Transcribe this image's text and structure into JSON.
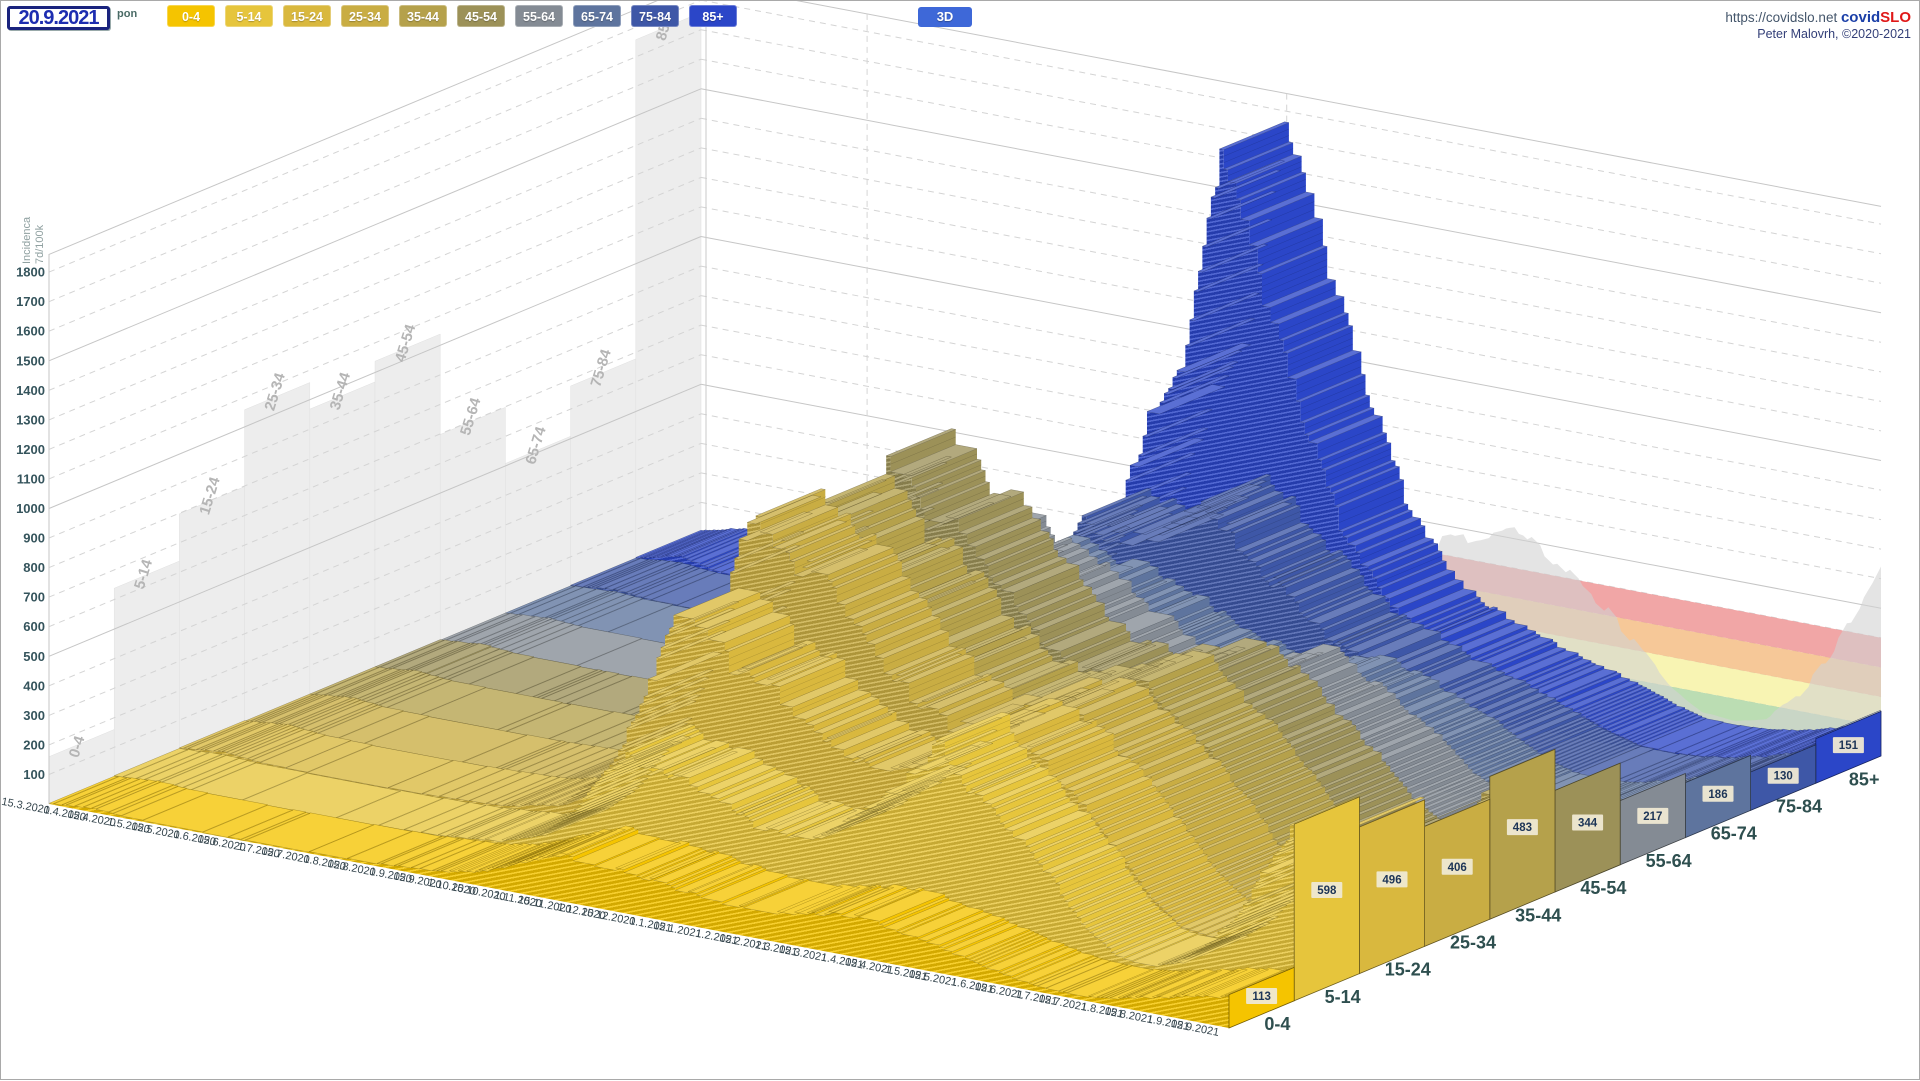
{
  "header": {
    "date": "20.9.2021",
    "day": "pon",
    "mode_button": "3D",
    "url": "https://covidslo.net",
    "brand_covid": "covid",
    "brand_slo": "SLO",
    "credit": "Peter Malovrh, ©2020-2021"
  },
  "axis": {
    "y_title_line1": "7d/100k",
    "y_title_line2": "Incidenca",
    "y_ticks": [
      100,
      200,
      300,
      400,
      500,
      600,
      700,
      800,
      900,
      1000,
      1100,
      1200,
      1300,
      1400,
      1500,
      1600,
      1700,
      1800
    ],
    "x_dates": [
      {
        "d": 0,
        "label": "15.3.2020"
      },
      {
        "d": 17,
        "label": "1.4.2020"
      },
      {
        "d": 31,
        "label": "15.4.2020"
      },
      {
        "d": 47,
        "label": "1.5.2020"
      },
      {
        "d": 61,
        "label": "15.5.2020"
      },
      {
        "d": 78,
        "label": "1.6.2020"
      },
      {
        "d": 92,
        "label": "15.6.2020"
      },
      {
        "d": 108,
        "label": "1.7.2020"
      },
      {
        "d": 122,
        "label": "15.7.2020"
      },
      {
        "d": 139,
        "label": "1.8.2020"
      },
      {
        "d": 153,
        "label": "15.8.2020"
      },
      {
        "d": 170,
        "label": "1.9.2020"
      },
      {
        "d": 184,
        "label": "15.9.2020"
      },
      {
        "d": 200,
        "label": "1.10.2020"
      },
      {
        "d": 214,
        "label": "15.10.2020"
      },
      {
        "d": 231,
        "label": "1.11.2020"
      },
      {
        "d": 245,
        "label": "15.11.2020"
      },
      {
        "d": 261,
        "label": "1.12.2020"
      },
      {
        "d": 275,
        "label": "15.12.2020"
      },
      {
        "d": 292,
        "label": "1.1.2021"
      },
      {
        "d": 306,
        "label": "15.1.2021"
      },
      {
        "d": 323,
        "label": "1.2.2021"
      },
      {
        "d": 337,
        "label": "15.2.2021"
      },
      {
        "d": 351,
        "label": "1.3.2021"
      },
      {
        "d": 365,
        "label": "15.3.2021"
      },
      {
        "d": 382,
        "label": "1.4.2021"
      },
      {
        "d": 396,
        "label": "15.4.2021"
      },
      {
        "d": 412,
        "label": "1.5.2021"
      },
      {
        "d": 426,
        "label": "15.5.2021"
      },
      {
        "d": 443,
        "label": "1.6.2021"
      },
      {
        "d": 457,
        "label": "15.6.2021"
      },
      {
        "d": 473,
        "label": "1.7.2021"
      },
      {
        "d": 487,
        "label": "15.7.2021"
      },
      {
        "d": 504,
        "label": "1.8.2021"
      },
      {
        "d": 518,
        "label": "15.8.2021"
      },
      {
        "d": 535,
        "label": "1.9.2021"
      },
      {
        "d": 549,
        "label": "15.9.2021"
      }
    ]
  },
  "age_groups": [
    {
      "label": "0-4",
      "color": "#f5c400",
      "current": 113
    },
    {
      "label": "5-14",
      "color": "#e6c53c",
      "current": 598
    },
    {
      "label": "15-24",
      "color": "#d9b83e",
      "current": 496
    },
    {
      "label": "25-34",
      "color": "#c9ad43",
      "current": 406
    },
    {
      "label": "35-44",
      "color": "#b5a14b",
      "current": 483
    },
    {
      "label": "45-54",
      "color": "#9c9158",
      "current": 344
    },
    {
      "label": "55-64",
      "color": "#848b94",
      "current": 217
    },
    {
      "label": "65-74",
      "color": "#5e749e",
      "current": 186
    },
    {
      "label": "75-84",
      "color": "#3e57a7",
      "current": 130
    },
    {
      "label": "85+",
      "color": "#2b46c8",
      "current": 151
    }
  ],
  "chart_data": {
    "type": "3d-ridge-surface",
    "title": "",
    "ylabel": "7d/100k Incidenca",
    "ylim": [
      0,
      1800
    ],
    "day_count": 554,
    "x_days": [
      0,
      20,
      35,
      60,
      90,
      120,
      150,
      180,
      200,
      215,
      225,
      232,
      240,
      250,
      258,
      266,
      274,
      282,
      292,
      302,
      315,
      330,
      345,
      360,
      375,
      385,
      395,
      410,
      425,
      440,
      455,
      470,
      485,
      500,
      515,
      530,
      543,
      550,
      554
    ],
    "series": [
      {
        "name": "0-4",
        "values": [
          3,
          14,
          6,
          3,
          3,
          5,
          8,
          22,
          45,
          90,
          125,
          145,
          160,
          150,
          140,
          148,
          142,
          132,
          118,
          108,
          98,
          92,
          104,
          124,
          140,
          136,
          122,
          100,
          75,
          48,
          25,
          15,
          14,
          28,
          52,
          78,
          98,
          108,
          113
        ]
      },
      {
        "name": "5-14",
        "values": [
          4,
          12,
          5,
          3,
          2,
          4,
          10,
          30,
          80,
          180,
          280,
          350,
          395,
          375,
          350,
          358,
          338,
          308,
          278,
          248,
          228,
          258,
          330,
          420,
          520,
          638,
          560,
          470,
          375,
          255,
          115,
          38,
          24,
          58,
          150,
          300,
          470,
          560,
          598
        ]
      },
      {
        "name": "15-24",
        "values": [
          6,
          22,
          9,
          5,
          4,
          8,
          18,
          60,
          200,
          420,
          640,
          780,
          798,
          718,
          640,
          658,
          618,
          558,
          498,
          448,
          398,
          378,
          418,
          498,
          568,
          618,
          558,
          468,
          375,
          255,
          125,
          42,
          28,
          78,
          168,
          298,
          418,
          468,
          496
        ]
      },
      {
        "name": "25-34",
        "values": [
          5,
          20,
          8,
          4,
          4,
          7,
          16,
          55,
          190,
          430,
          700,
          920,
          1058,
          978,
          858,
          878,
          818,
          738,
          658,
          578,
          498,
          448,
          468,
          518,
          558,
          598,
          538,
          448,
          358,
          248,
          115,
          38,
          26,
          62,
          138,
          238,
          328,
          378,
          406
        ]
      },
      {
        "name": "35-44",
        "values": [
          4,
          18,
          7,
          4,
          3,
          6,
          14,
          50,
          170,
          400,
          650,
          850,
          968,
          898,
          798,
          818,
          778,
          698,
          628,
          558,
          488,
          438,
          458,
          508,
          548,
          588,
          528,
          448,
          358,
          248,
          112,
          36,
          25,
          58,
          132,
          238,
          338,
          418,
          483
        ]
      },
      {
        "name": "45-54",
        "values": [
          4,
          16,
          6,
          3,
          3,
          5,
          12,
          45,
          160,
          390,
          640,
          850,
          1038,
          968,
          868,
          888,
          838,
          758,
          678,
          598,
          518,
          448,
          438,
          478,
          508,
          538,
          488,
          408,
          318,
          218,
          98,
          30,
          19,
          44,
          98,
          168,
          238,
          288,
          344
        ]
      },
      {
        "name": "55-64",
        "values": [
          3,
          13,
          5,
          3,
          2,
          4,
          10,
          35,
          120,
          280,
          460,
          610,
          698,
          658,
          598,
          618,
          588,
          538,
          488,
          438,
          388,
          338,
          328,
          348,
          378,
          418,
          378,
          318,
          248,
          168,
          78,
          24,
          14,
          29,
          64,
          108,
          158,
          188,
          217
        ]
      },
      {
        "name": "65-74",
        "values": [
          3,
          11,
          4,
          2,
          2,
          3,
          8,
          25,
          85,
          200,
          330,
          440,
          508,
          478,
          438,
          458,
          438,
          408,
          378,
          338,
          298,
          258,
          238,
          248,
          268,
          288,
          258,
          218,
          168,
          113,
          53,
          17,
          11,
          21,
          48,
          84,
          124,
          154,
          186
        ]
      },
      {
        "name": "75-84",
        "values": [
          4,
          18,
          7,
          3,
          2,
          3,
          7,
          22,
          80,
          200,
          340,
          470,
          558,
          538,
          508,
          538,
          568,
          618,
          678,
          638,
          558,
          458,
          375,
          300,
          262,
          230,
          200,
          168,
          128,
          88,
          42,
          14,
          9,
          17,
          34,
          58,
          88,
          108,
          130
        ]
      },
      {
        "name": "85+",
        "values": [
          6,
          40,
          13,
          4,
          3,
          4,
          8,
          25,
          90,
          230,
          420,
          620,
          800,
          900,
          1050,
          1360,
          1758,
          1600,
          1380,
          1120,
          850,
          580,
          400,
          300,
          245,
          215,
          185,
          150,
          118,
          88,
          45,
          16,
          11,
          19,
          36,
          62,
          92,
          118,
          151
        ]
      }
    ],
    "total_overlay": {
      "name": "total",
      "values": [
        5,
        22,
        9,
        4,
        3,
        5,
        12,
        45,
        150,
        350,
        560,
        720,
        830,
        780,
        710,
        730,
        700,
        640,
        580,
        520,
        460,
        420,
        430,
        470,
        520,
        545,
        490,
        400,
        320,
        215,
        100,
        33,
        23,
        52,
        150,
        300,
        470,
        560,
        620
      ]
    },
    "bands": {
      "start_day": 324,
      "levels": [
        {
          "from": 0,
          "to": 100,
          "color": "#b2d8a8"
        },
        {
          "from": 100,
          "to": 200,
          "color": "#f7f2a8"
        },
        {
          "from": 200,
          "to": 300,
          "color": "#f5c08a"
        },
        {
          "from": 300,
          "to": 400,
          "color": "#ef9a9a"
        }
      ]
    }
  }
}
